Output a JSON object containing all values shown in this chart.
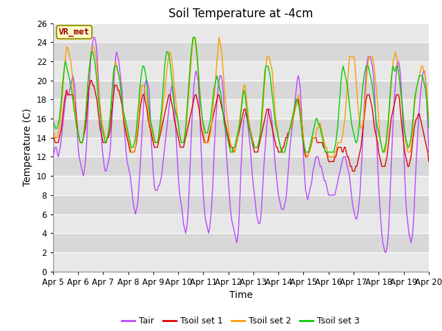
{
  "title": "Soil Temperature at -4cm",
  "xlabel": "Time",
  "ylabel": "Temperature (C)",
  "annotation": "VR_met",
  "legend_labels": [
    "Tair",
    "Tsoil set 1",
    "Tsoil set 2",
    "Tsoil set 3"
  ],
  "line_colors": [
    "#bb44ff",
    "#dd0000",
    "#ff9900",
    "#00cc00"
  ],
  "ylim": [
    0,
    26
  ],
  "xlim": [
    0,
    360
  ],
  "x_ticks": [
    0,
    24,
    48,
    72,
    96,
    120,
    144,
    168,
    192,
    216,
    240,
    264,
    288,
    312,
    336,
    360
  ],
  "x_tick_labels": [
    "Apr 5",
    "Apr 6",
    "Apr 7",
    "Apr 8",
    "Apr 9",
    "Apr 10",
    "Apr 11",
    "Apr 12",
    "Apr 13",
    "Apr 14",
    "Apr 15",
    "Apr 16",
    "Apr 17",
    "Apr 18",
    "Apr 19",
    "Apr 20"
  ],
  "y_ticks": [
    0,
    2,
    4,
    6,
    8,
    10,
    12,
    14,
    16,
    18,
    20,
    22,
    24,
    26
  ],
  "band_colors": [
    "#e8e8e8",
    "#d8d8d8"
  ],
  "grid_line_color": "#ffffff",
  "title_fontsize": 12,
  "label_fontsize": 10,
  "tick_fontsize": 8.5,
  "annot_fontsize": 9,
  "legend_fontsize": 9
}
